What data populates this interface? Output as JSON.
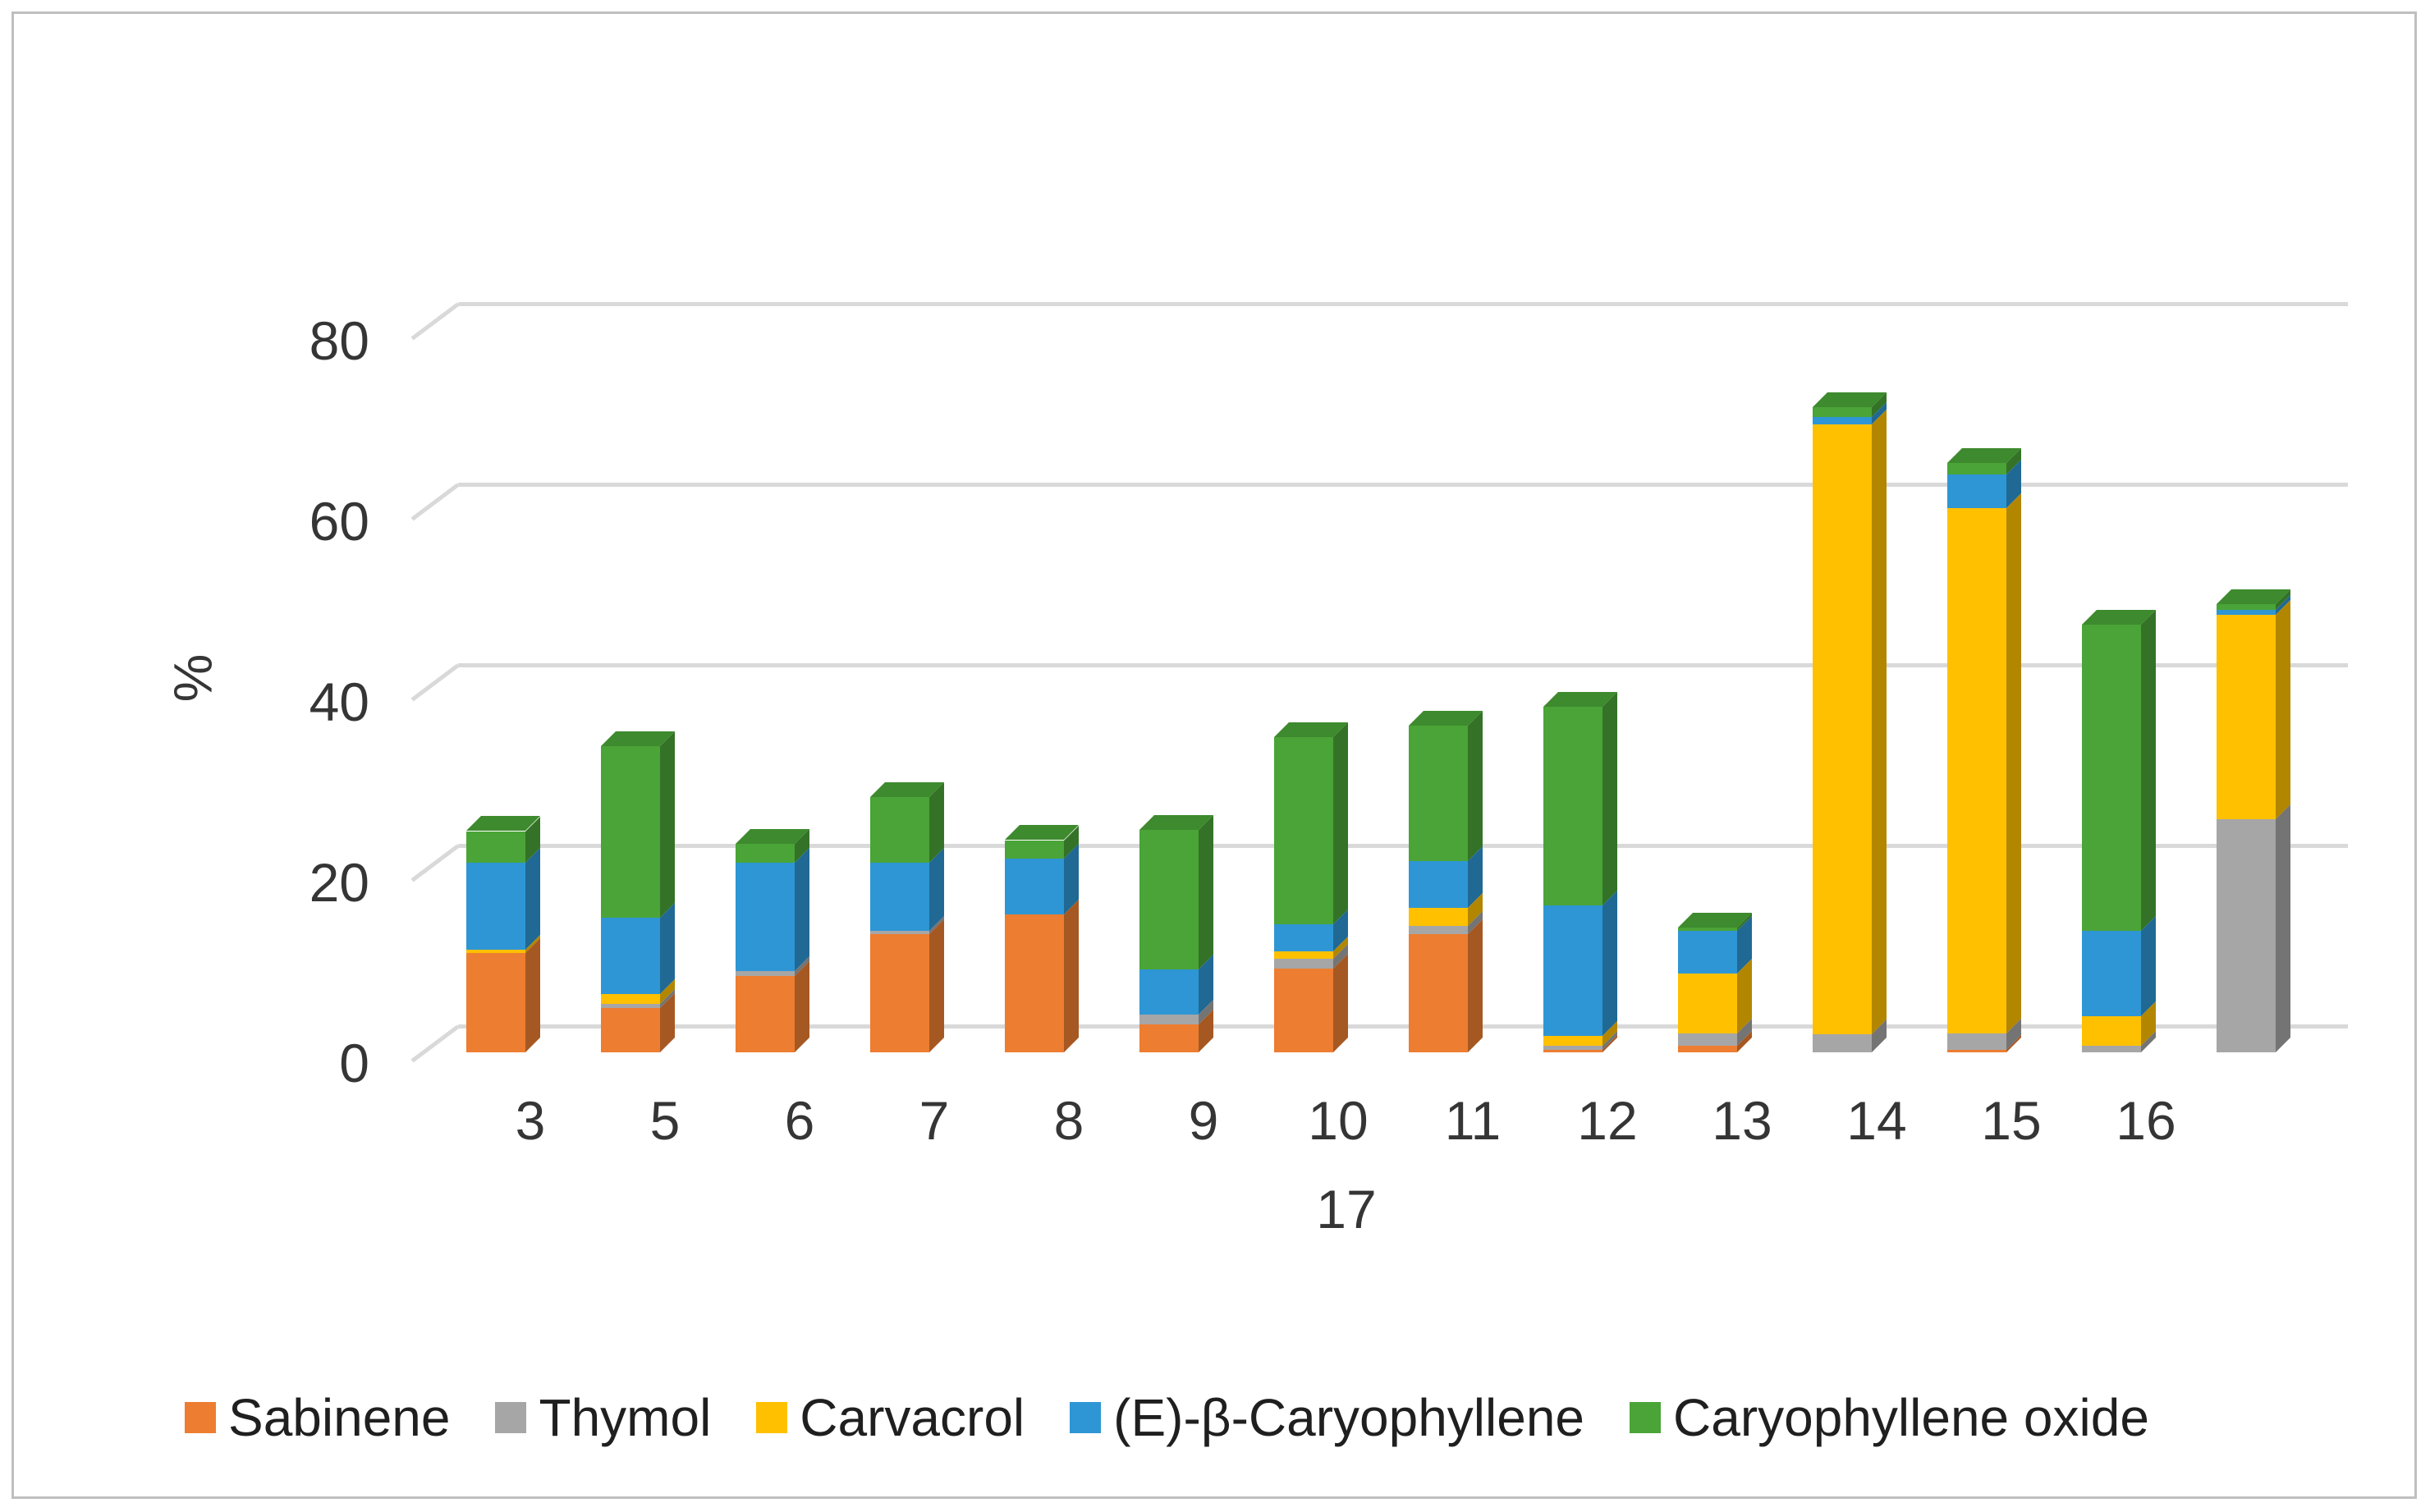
{
  "figure": {
    "background": "#ffffff",
    "border_color": "#bfbfbf",
    "gridline_color": "#d9d9d9",
    "tick_label_color": "#353535"
  },
  "chart_data": {
    "type": "bar",
    "stacked": true,
    "effect": "3d-column",
    "title": "",
    "xlabel": "",
    "ylabel": "%",
    "ylim": [
      0,
      80
    ],
    "yticks": [
      0,
      20,
      40,
      60,
      80
    ],
    "grid": true,
    "legend_position": "bottom",
    "categories": [
      "3",
      "5",
      "6",
      "7",
      "8",
      "9",
      "10",
      "11",
      "12",
      "13",
      "14",
      "15",
      "16",
      "17"
    ],
    "series": [
      {
        "name": "Sabinene",
        "color": "#ed7d31",
        "values": [
          11.0,
          4.9,
          8.5,
          13.1,
          15.3,
          3.1,
          9.3,
          13.1,
          0.3,
          0.7,
          0,
          0.3,
          0,
          0
        ]
      },
      {
        "name": "Thymol",
        "color": "#a6a6a6",
        "values": [
          0,
          0.5,
          0.5,
          0.4,
          0,
          1.1,
          1.1,
          0.9,
          0.4,
          1.4,
          2.0,
          1.8,
          0.7,
          25.8
        ]
      },
      {
        "name": "Carvacrol",
        "color": "#ffc000",
        "values": [
          0.4,
          1.1,
          0,
          0,
          0,
          0,
          0.8,
          2.0,
          1.1,
          6.6,
          67.6,
          58.2,
          3.3,
          22.7
        ]
      },
      {
        "name": "(E)-β-Caryophyllene",
        "color": "#2e96d4",
        "values": [
          9.6,
          8.4,
          12.0,
          7.5,
          6.2,
          5.0,
          3.0,
          5.2,
          14.5,
          4.8,
          0.8,
          3.7,
          9.5,
          0.5
        ]
      },
      {
        "name": "Caryophyllene oxide",
        "color": "#4aa437",
        "values": [
          3.5,
          19.0,
          2.1,
          7.3,
          2.0,
          15.4,
          20.7,
          15.0,
          22.0,
          0.3,
          1.1,
          1.3,
          33.9,
          0.6
        ]
      }
    ]
  }
}
